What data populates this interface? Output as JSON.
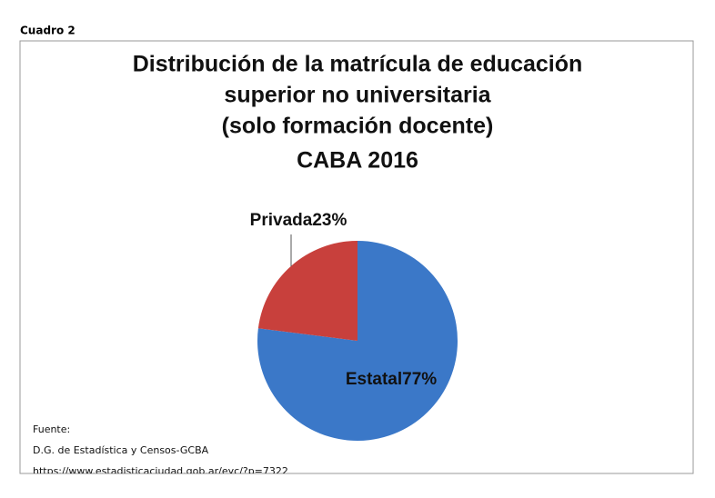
{
  "header": "Cuadro 2",
  "chart_data": {
    "type": "pie",
    "title": [
      "Distribución de la matrícula de educación",
      "superior no universitaria",
      "(solo formación docente)",
      "CABA 2016"
    ],
    "categories": [
      "Estatal",
      "Privada"
    ],
    "values": [
      77,
      23
    ],
    "value_labels": [
      "77%",
      "23%"
    ],
    "colors": [
      "#3b78c8",
      "#c8403c"
    ]
  },
  "source": [
    "Fuente:",
    "D.G. de Estadística y Censos-GCBA",
    "https://www.estadisticaciudad.gob.ar/eyc/?p=7322"
  ]
}
